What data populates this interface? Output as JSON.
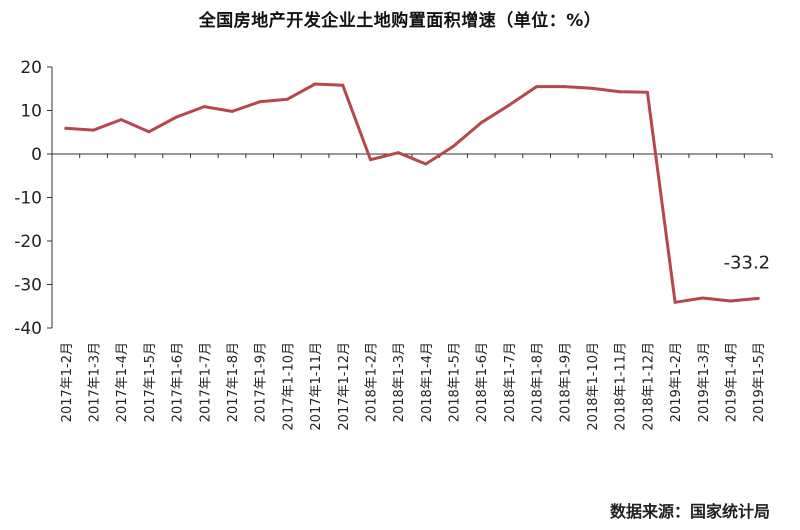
{
  "chart_data": {
    "type": "line",
    "title": "全国房地产开发企业土地购置面积增速（单位：%）",
    "source": "数据来源：国家统计局",
    "xlabel": "",
    "ylabel": "",
    "ylim": [
      -40,
      20
    ],
    "yticks": [
      20,
      10,
      0,
      -10,
      -20,
      -30,
      -40
    ],
    "grid": false,
    "legend": "none",
    "line_color": "#b5474d",
    "categories": [
      "2017年1-2月",
      "2017年1-3月",
      "2017年1-4月",
      "2017年1-5月",
      "2017年1-6月",
      "2017年1-7月",
      "2017年1-8月",
      "2017年1-9月",
      "2017年1-10月",
      "2017年1-11月",
      "2017年1-12月",
      "2018年1-2月",
      "2018年1-3月",
      "2018年1-4月",
      "2018年1-5月",
      "2018年1-6月",
      "2018年1-7月",
      "2018年1-8月",
      "2018年1-9月",
      "2018年1-10月",
      "2018年1-11月",
      "2018年1-12月",
      "2019年1-2月",
      "2019年1-3月",
      "2019年1-4月",
      "2019年1-5月"
    ],
    "series": [
      {
        "values": [
          5.9,
          5.5,
          7.9,
          5.1,
          8.5,
          10.9,
          9.8,
          12.0,
          12.6,
          16.1,
          15.8,
          -1.3,
          0.3,
          -2.3,
          1.8,
          7.2,
          11.2,
          15.5,
          15.5,
          15.1,
          14.3,
          14.2,
          -34.1,
          -33.1,
          -33.8,
          -33.2
        ]
      }
    ],
    "annotation": "-33.2"
  }
}
